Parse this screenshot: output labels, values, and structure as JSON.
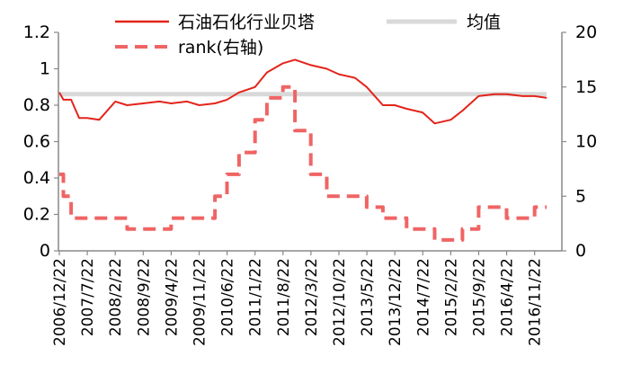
{
  "chart_data": {
    "type": "line",
    "x_ticks": [
      "2006/12/22",
      "2007/7/22",
      "2008/2/22",
      "2008/9/22",
      "2009/4/22",
      "2009/11/22",
      "2010/6/22",
      "2011/1/22",
      "2011/8/22",
      "2012/3/22",
      "2012/10/22",
      "2013/5/22",
      "2013/12/22",
      "2014/7/22",
      "2015/2/22",
      "2015/9/22",
      "2016/4/22",
      "2016/11/22"
    ],
    "y_left": {
      "ticks": [
        "0",
        "0.2",
        "0.4",
        "0.6",
        "0.8",
        "1",
        "1.2"
      ],
      "range": [
        0,
        1.2
      ]
    },
    "y_right": {
      "ticks": [
        "0",
        "5",
        "10",
        "15",
        "20"
      ],
      "range": [
        0,
        20
      ]
    },
    "series": [
      {
        "name": "石油石化行业贝塔",
        "axis": "left",
        "color": "#e3241a",
        "style": "solid",
        "x": [
          "2006/12/22",
          "2007/1/22",
          "2007/3/22",
          "2007/5/22",
          "2007/7/22",
          "2007/10/22",
          "2008/2/22",
          "2008/5/22",
          "2008/9/22",
          "2009/1/22",
          "2009/4/22",
          "2009/8/22",
          "2009/11/22",
          "2010/3/22",
          "2010/6/22",
          "2010/9/22",
          "2011/1/22",
          "2011/4/22",
          "2011/8/22",
          "2011/11/22",
          "2012/3/22",
          "2012/7/22",
          "2012/10/22",
          "2013/2/22",
          "2013/5/22",
          "2013/9/22",
          "2013/12/22",
          "2014/3/22",
          "2014/7/22",
          "2014/10/22",
          "2015/2/22",
          "2015/5/22",
          "2015/9/22",
          "2016/1/22",
          "2016/4/22",
          "2016/8/22",
          "2016/11/22",
          "2017/2/22"
        ],
        "values": [
          0.87,
          0.83,
          0.83,
          0.73,
          0.73,
          0.72,
          0.82,
          0.8,
          0.81,
          0.82,
          0.81,
          0.82,
          0.8,
          0.81,
          0.83,
          0.87,
          0.9,
          0.98,
          1.03,
          1.05,
          1.02,
          1.0,
          0.97,
          0.95,
          0.9,
          0.8,
          0.8,
          0.78,
          0.76,
          0.7,
          0.72,
          0.77,
          0.85,
          0.86,
          0.86,
          0.85,
          0.85,
          0.84
        ]
      },
      {
        "name": "rank(右轴)",
        "axis": "right",
        "color": "#f06464",
        "style": "dashed",
        "x": [
          "2006/12/22",
          "2007/1/22",
          "2007/3/22",
          "2007/7/22",
          "2007/10/22",
          "2008/2/22",
          "2008/5/22",
          "2008/9/22",
          "2009/1/22",
          "2009/4/22",
          "2009/8/22",
          "2009/11/22",
          "2010/3/22",
          "2010/6/22",
          "2010/9/22",
          "2011/1/22",
          "2011/4/22",
          "2011/8/22",
          "2011/11/22",
          "2012/3/22",
          "2012/7/22",
          "2012/10/22",
          "2013/2/22",
          "2013/5/22",
          "2013/9/22",
          "2013/12/22",
          "2014/3/22",
          "2014/7/22",
          "2014/10/22",
          "2015/2/22",
          "2015/5/22",
          "2015/9/22",
          "2016/1/22",
          "2016/4/22",
          "2016/8/22",
          "2016/11/22",
          "2017/2/22"
        ],
        "values": [
          7,
          5,
          3,
          3,
          3,
          3,
          2,
          2,
          2,
          3,
          3,
          3,
          5,
          7,
          9,
          12,
          14,
          15,
          11,
          7,
          5,
          5,
          5,
          4,
          3,
          3,
          2,
          2,
          1,
          1,
          2,
          4,
          4,
          3,
          3,
          4,
          4
        ]
      },
      {
        "name": "均值",
        "axis": "left",
        "color": "#d9d9d9",
        "style": "solid",
        "x": [
          "2006/12/22",
          "2017/2/22"
        ],
        "values": [
          0.86,
          0.86
        ]
      }
    ],
    "legend": {
      "placement": "top",
      "entries": [
        "石油石化行业贝塔",
        "均值",
        "rank(右轴)"
      ]
    }
  }
}
